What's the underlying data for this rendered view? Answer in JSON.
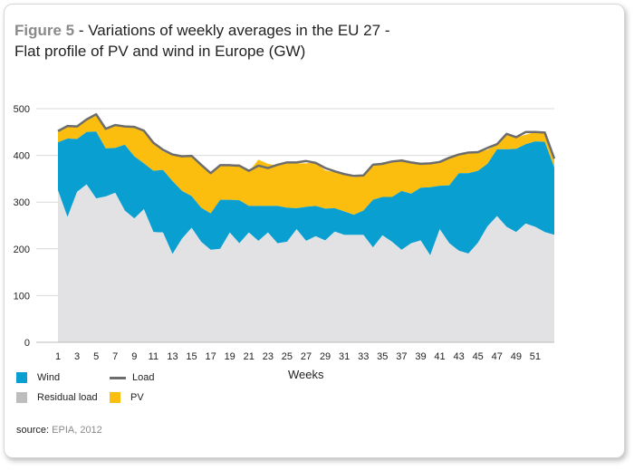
{
  "title": {
    "figure_label": "Figure 5",
    "line1": " - Variations of weekly averages in the EU 27 -",
    "line2": "Flat profile of PV and wind in Europe (GW)"
  },
  "source": {
    "label": "source:",
    "value": "EPIA, 2012"
  },
  "colors": {
    "wind": "#0a9fd1",
    "residual": "#e2e2e4",
    "pv": "#fbbe0f",
    "load": "#6d6d6d"
  },
  "chart_data": {
    "type": "area",
    "xlabel": "Weeks",
    "ylabel": "",
    "ylim": [
      0,
      500
    ],
    "yticks": [
      0,
      100,
      200,
      300,
      400,
      500
    ],
    "xticks": [
      1,
      3,
      5,
      7,
      9,
      11,
      13,
      15,
      17,
      19,
      21,
      23,
      25,
      27,
      29,
      31,
      33,
      35,
      37,
      39,
      41,
      43,
      45,
      47,
      49,
      51
    ],
    "x": [
      1,
      2,
      3,
      4,
      5,
      6,
      7,
      8,
      9,
      10,
      11,
      12,
      13,
      14,
      15,
      16,
      17,
      18,
      19,
      20,
      21,
      22,
      23,
      24,
      25,
      26,
      27,
      28,
      29,
      30,
      31,
      32,
      33,
      34,
      35,
      36,
      37,
      38,
      39,
      40,
      41,
      42,
      43,
      44,
      45,
      46,
      47,
      48,
      49,
      50,
      51,
      52,
      53
    ],
    "grid": true,
    "legend_position": "bottom-left",
    "series": [
      {
        "name": "Residual load",
        "kind": "stacked-area",
        "values": [
          325,
          268,
          322,
          338,
          308,
          312,
          320,
          282,
          265,
          285,
          236,
          235,
          189,
          222,
          245,
          215,
          198,
          200,
          235,
          212,
          235,
          217,
          235,
          212,
          215,
          242,
          217,
          227,
          218,
          237,
          230,
          230,
          230,
          203,
          229,
          215,
          198,
          212,
          218,
          186,
          242,
          212,
          196,
          190,
          213,
          248,
          270,
          247,
          236,
          254,
          247,
          236,
          230
        ]
      },
      {
        "name": "Wind",
        "kind": "stacked-area",
        "values": [
          103,
          168,
          113,
          112,
          143,
          103,
          96,
          141,
          133,
          98,
          131,
          134,
          156,
          102,
          68,
          73,
          78,
          105,
          70,
          92,
          57,
          75,
          57,
          80,
          73,
          45,
          73,
          65,
          68,
          50,
          50,
          43,
          52,
          102,
          82,
          96,
          126,
          106,
          113,
          146,
          93,
          124,
          166,
          172,
          154,
          134,
          143,
          166,
          178,
          170,
          183,
          193,
          144
        ]
      },
      {
        "name": "PV",
        "kind": "stacked-area",
        "values": [
          22,
          25,
          25,
          25,
          35,
          40,
          47,
          39,
          61,
          71,
          58,
          40,
          55,
          73,
          84,
          90,
          84,
          72,
          75,
          77,
          73,
          99,
          90,
          86,
          95,
          96,
          93,
          93,
          82,
          77,
          80,
          80,
          75,
          72,
          74,
          76,
          68,
          68,
          50,
          52,
          52,
          58,
          38,
          45,
          40,
          30,
          10,
          30,
          25,
          20,
          20,
          20,
          18
        ]
      },
      {
        "name": "Load",
        "kind": "line",
        "values": [
          452,
          463,
          462,
          477,
          488,
          457,
          465,
          462,
          461,
          453,
          427,
          412,
          402,
          398,
          399,
          380,
          362,
          379,
          379,
          378,
          367,
          378,
          373,
          380,
          385,
          385,
          388,
          384,
          373,
          366,
          360,
          356,
          357,
          380,
          382,
          387,
          389,
          385,
          382,
          383,
          386,
          395,
          402,
          406,
          407,
          416,
          424,
          446,
          439,
          450,
          450,
          449,
          393
        ]
      }
    ]
  }
}
